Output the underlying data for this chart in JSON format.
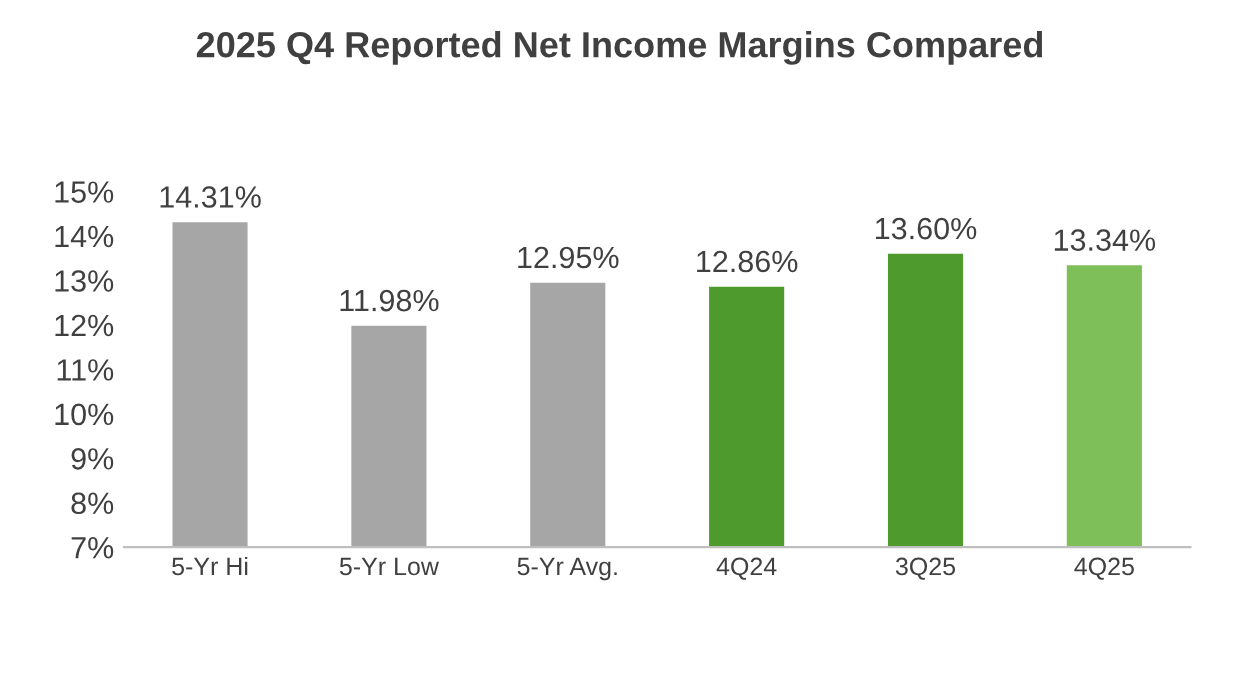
{
  "chart_data": {
    "type": "bar",
    "title": "2025 Q4 Reported Net Income Margins Compared",
    "categories": [
      "5-Yr Hi",
      "5-Yr Low",
      "5-Yr Avg.",
      "4Q24",
      "3Q25",
      "4Q25"
    ],
    "values": [
      14.31,
      11.98,
      12.95,
      12.86,
      13.6,
      13.34
    ],
    "value_labels": [
      "14.31%",
      "11.98%",
      "12.95%",
      "12.86%",
      "13.60%",
      "13.34%"
    ],
    "colors": [
      "#a6a6a6",
      "#a6a6a6",
      "#a6a6a6",
      "#4e9a2c",
      "#4e9a2c",
      "#7fbf5a"
    ],
    "ylim": [
      7,
      15
    ],
    "yticks": [
      {
        "value": 7,
        "label": "7%"
      },
      {
        "value": 8,
        "label": "8%"
      },
      {
        "value": 9,
        "label": "9%"
      },
      {
        "value": 10,
        "label": "10%"
      },
      {
        "value": 11,
        "label": "11%"
      },
      {
        "value": 12,
        "label": "12%"
      },
      {
        "value": 13,
        "label": "13%"
      },
      {
        "value": 14,
        "label": "14%"
      },
      {
        "value": 15,
        "label": "15%"
      }
    ],
    "grid": false
  }
}
